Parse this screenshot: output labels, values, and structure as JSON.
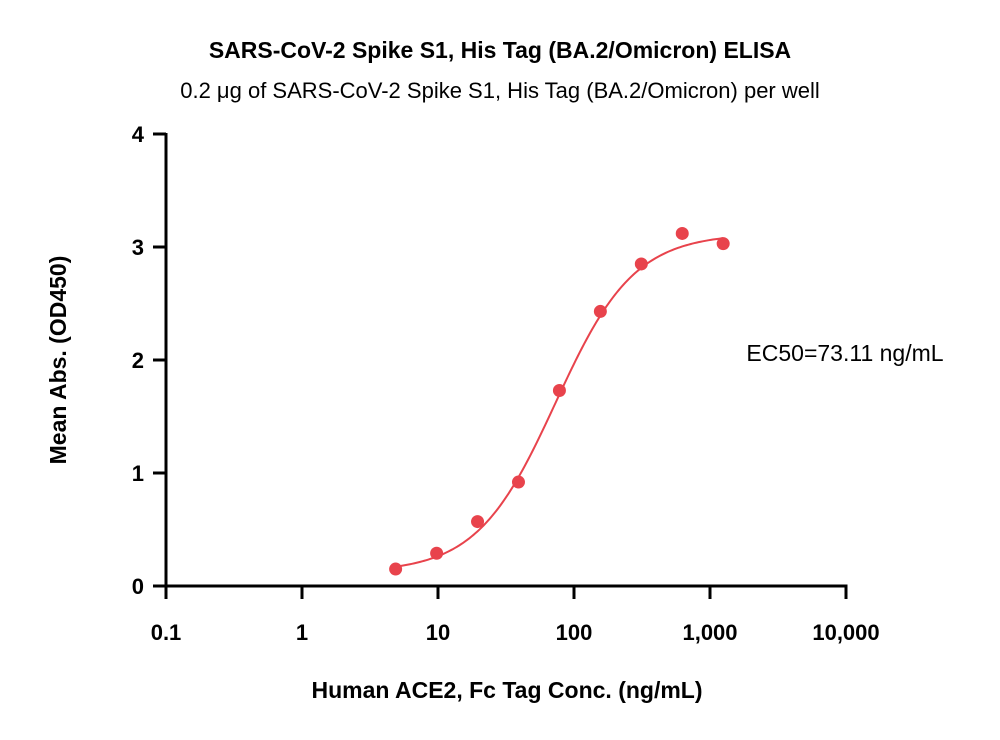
{
  "chart_data": {
    "type": "scatter",
    "title": "SARS-CoV-2 Spike S1, His Tag (BA.2/Omicron) ELISA",
    "subtitle": "0.2 μg of SARS-CoV-2 Spike S1, His Tag (BA.2/Omicron) per well",
    "xlabel": "Human ACE2, Fc Tag Conc. (ng/mL)",
    "ylabel": "Mean Abs. (OD450)",
    "x_scale": "log",
    "xlim": [
      0.1,
      10000
    ],
    "ylim": [
      0,
      4
    ],
    "x_ticks": [
      0.1,
      1,
      10,
      100,
      1000,
      10000
    ],
    "x_tick_labels": [
      "0.1",
      "1",
      "10",
      "100",
      "1,000",
      "10,000"
    ],
    "y_ticks": [
      0,
      1,
      2,
      3,
      4
    ],
    "y_tick_labels": [
      "0",
      "1",
      "2",
      "3",
      "4"
    ],
    "grid": false,
    "point_color": "#e8434c",
    "curve_color": "#e8434c",
    "series": [
      {
        "x": [
          4.88,
          9.77,
          19.53,
          39.06,
          78.13,
          156.25,
          312.5,
          625,
          1250
        ],
        "y": [
          0.15,
          0.29,
          0.57,
          0.92,
          1.73,
          2.43,
          2.85,
          3.12,
          3.03
        ]
      }
    ],
    "fit": {
      "model": "4PL",
      "bottom": 0.12,
      "top": 3.12,
      "ec50": 73.11,
      "hill": 1.5
    },
    "annotation": "EC50=73.11 ng/mL"
  }
}
